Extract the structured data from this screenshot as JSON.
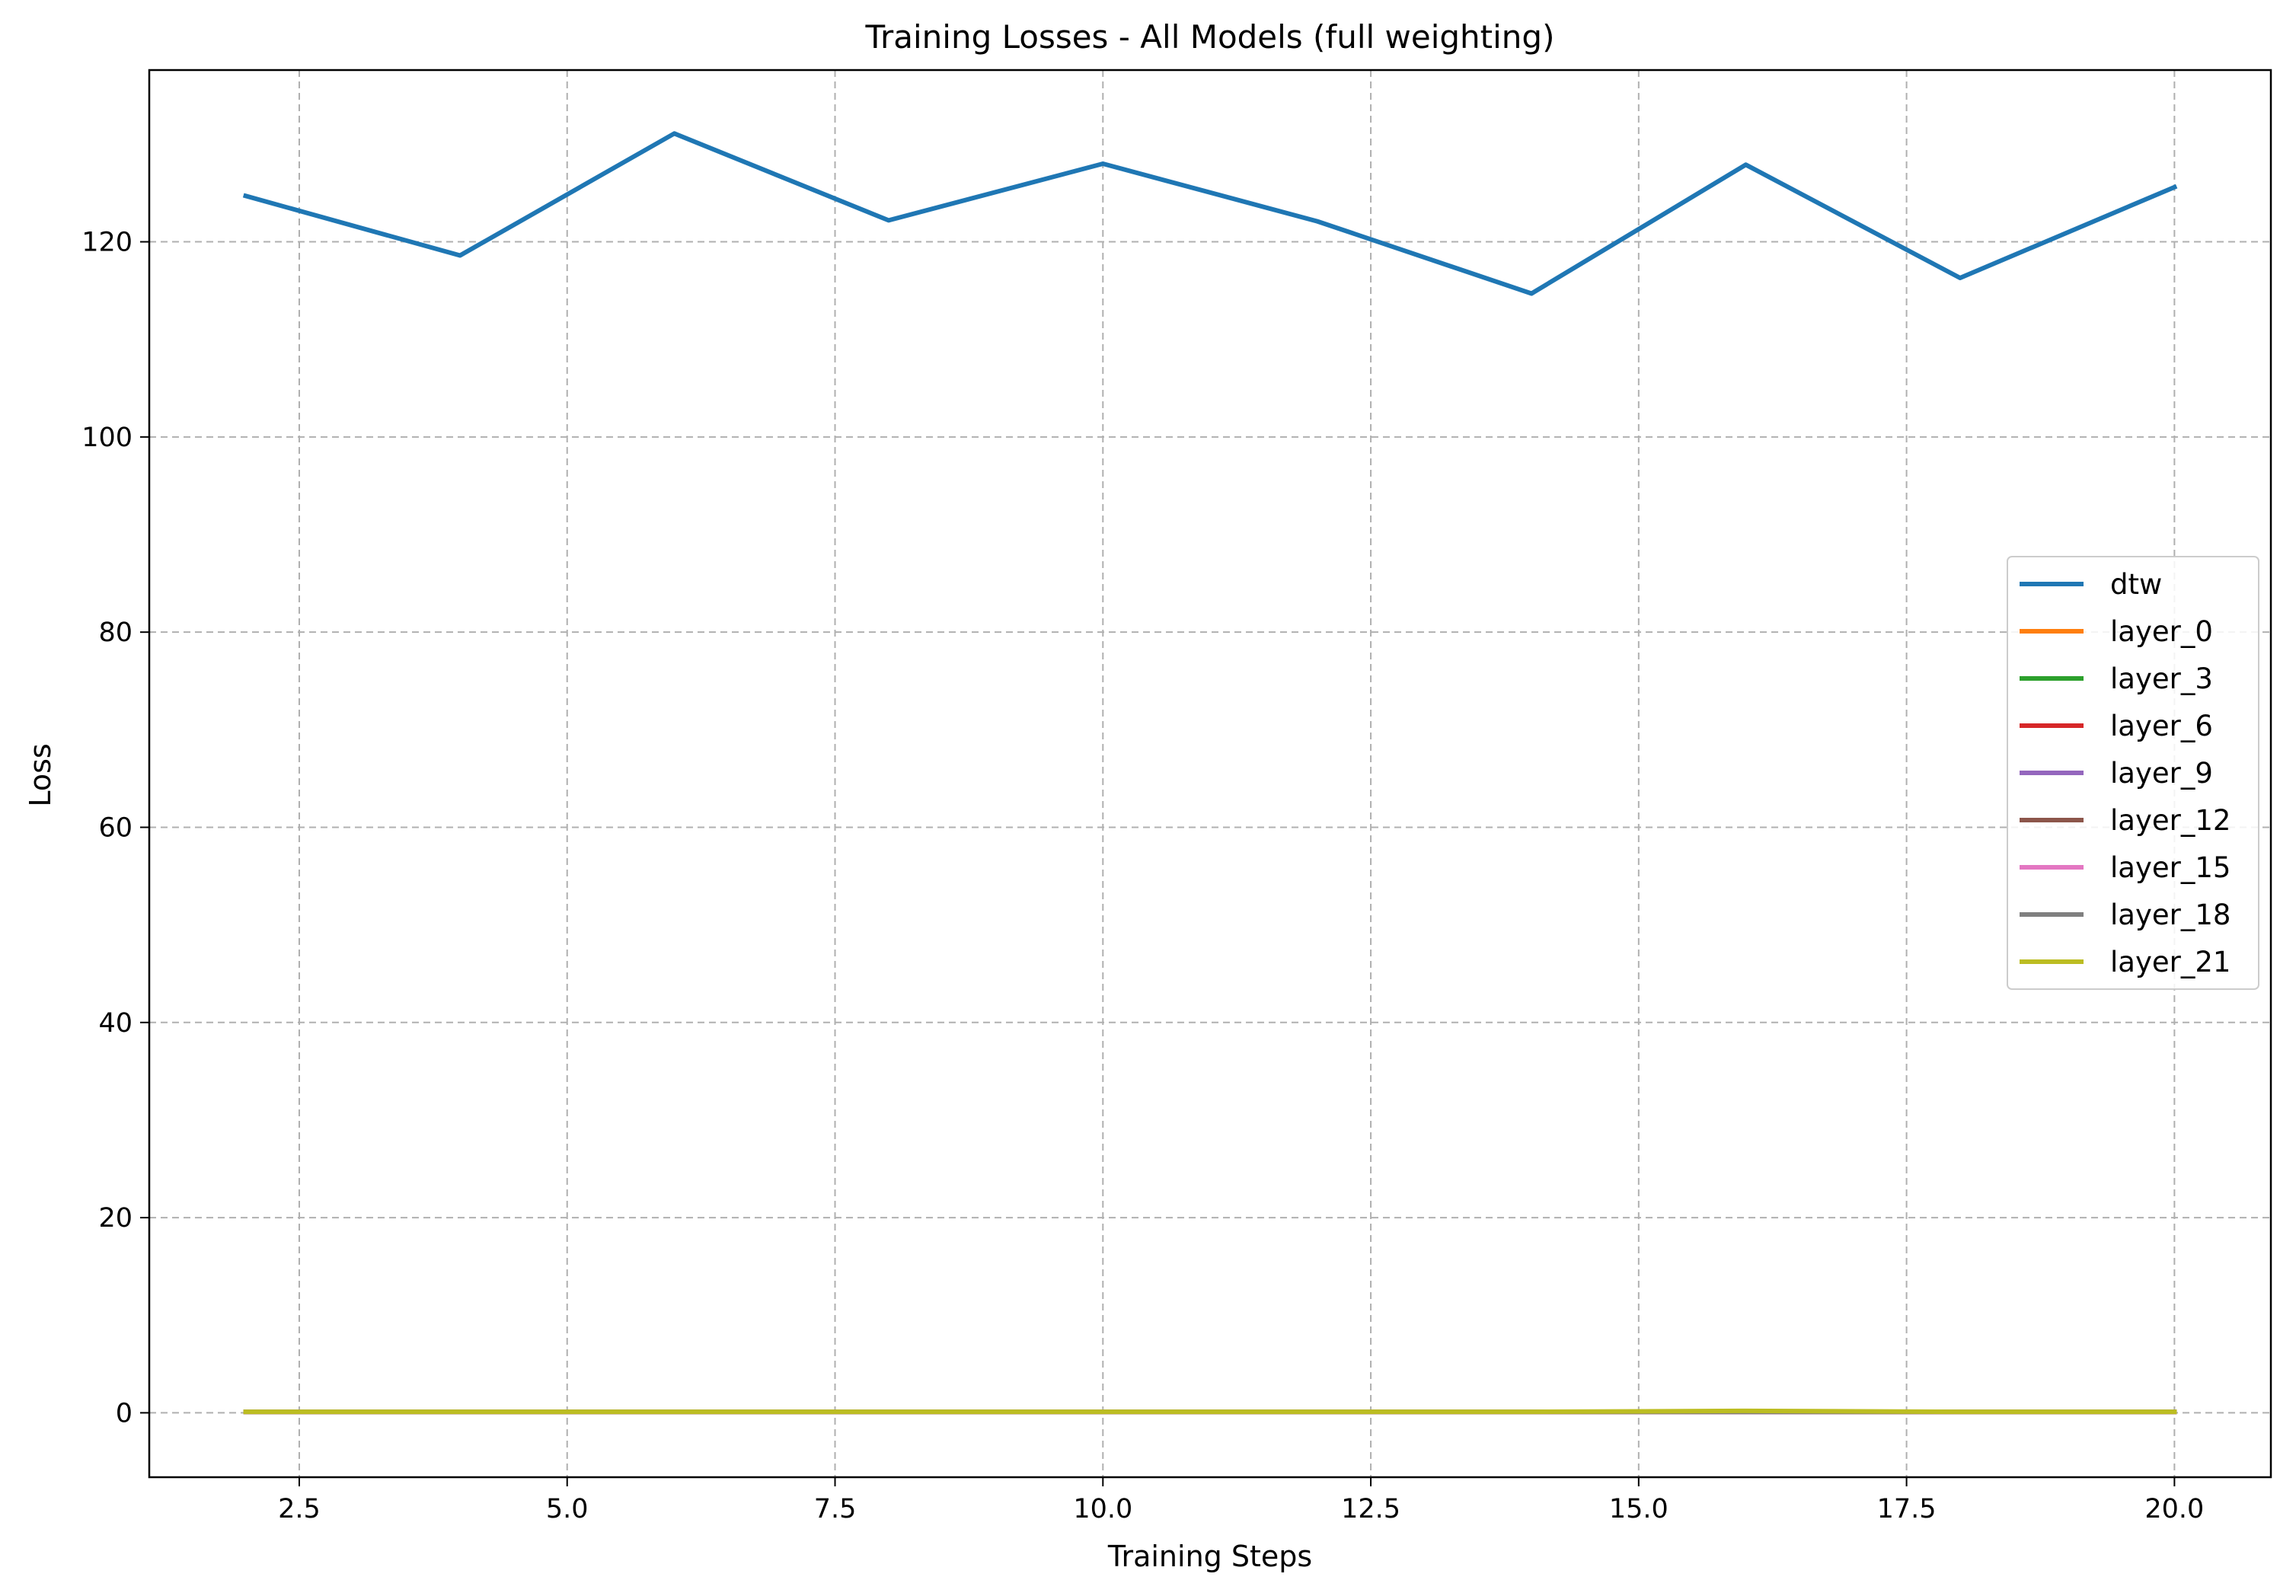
{
  "chart_data": {
    "type": "line",
    "title": "Training Losses - All Models (full weighting)",
    "xlabel": "Training Steps",
    "ylabel": "Loss",
    "xlim": [
      1.1,
      20.9
    ],
    "ylim": [
      -6.6,
      137.6
    ],
    "xticks": [
      2.5,
      5.0,
      7.5,
      10.0,
      12.5,
      15.0,
      17.5,
      20.0
    ],
    "xtick_labels": [
      "2.5",
      "5.0",
      "7.5",
      "10.0",
      "12.5",
      "15.0",
      "17.5",
      "20.0"
    ],
    "yticks": [
      0,
      20,
      40,
      60,
      80,
      100,
      120
    ],
    "ytick_labels": [
      "0",
      "20",
      "40",
      "60",
      "80",
      "100",
      "120"
    ],
    "grid": true,
    "grid_style": "dashed",
    "legend_position": "center-right",
    "x": [
      2,
      4,
      6,
      8,
      10,
      12,
      14,
      16,
      18,
      20
    ],
    "series": [
      {
        "name": "dtw",
        "color": "#1f77b4",
        "values": [
          124.7,
          118.6,
          131.1,
          122.2,
          128.0,
          122.1,
          114.7,
          127.9,
          116.3,
          125.6
        ]
      },
      {
        "name": "layer_0",
        "color": "#ff7f0e",
        "values": [
          0.1,
          0.1,
          0.1,
          0.1,
          0.1,
          0.1,
          0.1,
          0.1,
          0.1,
          0.1
        ]
      },
      {
        "name": "layer_3",
        "color": "#2ca02c",
        "values": [
          0.1,
          0.1,
          0.1,
          0.1,
          0.1,
          0.1,
          0.1,
          0.1,
          0.1,
          0.1
        ]
      },
      {
        "name": "layer_6",
        "color": "#d62728",
        "values": [
          0.1,
          0.1,
          0.1,
          0.1,
          0.1,
          0.1,
          0.1,
          0.1,
          0.1,
          0.1
        ]
      },
      {
        "name": "layer_9",
        "color": "#9467bd",
        "values": [
          0.1,
          0.1,
          0.1,
          0.1,
          0.1,
          0.1,
          0.1,
          0.1,
          0.1,
          0.1
        ]
      },
      {
        "name": "layer_12",
        "color": "#8c564b",
        "values": [
          0.1,
          0.1,
          0.1,
          0.1,
          0.1,
          0.1,
          0.1,
          0.1,
          0.1,
          0.1
        ]
      },
      {
        "name": "layer_15",
        "color": "#e377c2",
        "values": [
          0.1,
          0.1,
          0.1,
          0.1,
          0.1,
          0.1,
          0.1,
          0.1,
          0.1,
          0.1
        ]
      },
      {
        "name": "layer_18",
        "color": "#7f7f7f",
        "values": [
          0.1,
          0.1,
          0.1,
          0.1,
          0.1,
          0.1,
          0.1,
          0.1,
          0.1,
          0.1
        ]
      },
      {
        "name": "layer_21",
        "color": "#bcbd22",
        "values": [
          0.1,
          0.1,
          0.1,
          0.1,
          0.1,
          0.1,
          0.1,
          0.2,
          0.1,
          0.1
        ]
      }
    ]
  }
}
